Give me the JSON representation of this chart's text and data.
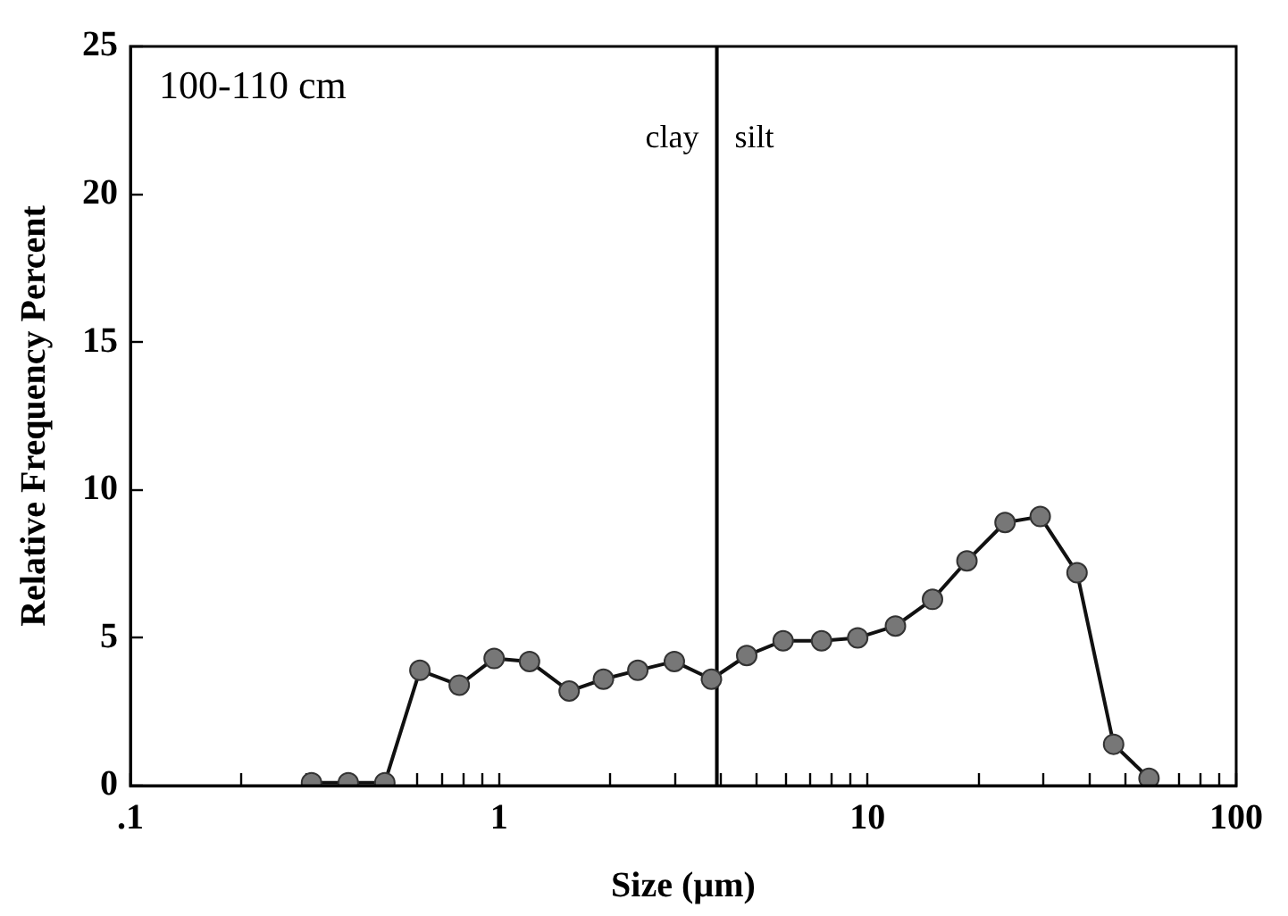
{
  "chart_data": {
    "type": "line",
    "xlabel": "Size (µm)",
    "ylabel": "Relative Frequency Percent",
    "annotations": [
      "100-110 cm",
      "clay",
      "silt"
    ],
    "x": [
      0.31,
      0.39,
      0.49,
      0.61,
      0.78,
      0.97,
      1.21,
      1.55,
      1.92,
      2.38,
      2.99,
      3.77,
      4.7,
      5.9,
      7.5,
      9.4,
      11.9,
      15,
      18.6,
      23.6,
      29.4,
      37,
      46.5,
      58
    ],
    "series": [
      {
        "color": "#777777",
        "values": [
          0.1,
          0.1,
          0.1,
          3.9,
          3.4,
          4.3,
          4.2,
          3.2,
          3.6,
          3.9,
          4.2,
          3.6,
          4.4,
          4.9,
          4.9,
          5.0,
          5.4,
          6.3,
          7.6,
          8.9,
          9.1,
          7.2,
          1.4,
          0.25
        ]
      }
    ],
    "ref_lines": [
      {
        "axis": "x",
        "value": 3.9,
        "color": "#000000"
      }
    ],
    "xlim": [
      0.1,
      100
    ],
    "ylim": [
      0,
      25
    ],
    "xticks": [
      {
        "value": 0.1,
        "label": ".1"
      },
      {
        "value": 0.2,
        "label": null
      },
      {
        "value": 0.3,
        "label": null
      },
      {
        "value": 0.4,
        "label": null
      },
      {
        "value": 0.5,
        "label": null
      },
      {
        "value": 0.6,
        "label": null
      },
      {
        "value": 0.7,
        "label": null
      },
      {
        "value": 0.8,
        "label": null
      },
      {
        "value": 0.9,
        "label": null
      },
      1,
      {
        "value": 2,
        "label": null
      },
      {
        "value": 3,
        "label": null
      },
      {
        "value": 4,
        "label": null
      },
      {
        "value": 5,
        "label": null
      },
      {
        "value": 6,
        "label": null
      },
      {
        "value": 7,
        "label": null
      },
      {
        "value": 8,
        "label": null
      },
      {
        "value": 9,
        "label": null
      },
      10,
      {
        "value": 20,
        "label": null
      },
      {
        "value": 30,
        "label": null
      },
      {
        "value": 40,
        "label": null
      },
      {
        "value": 50,
        "label": null
      },
      {
        "value": 60,
        "label": null
      },
      {
        "value": 70,
        "label": null
      },
      {
        "value": 80,
        "label": null
      },
      {
        "value": 90,
        "label": null
      },
      100
    ],
    "yticks": [
      0,
      5,
      10,
      15,
      20,
      25
    ],
    "log": "x",
    "grid": false,
    "legend": false,
    "marker": "circle",
    "line_style": "solid"
  }
}
